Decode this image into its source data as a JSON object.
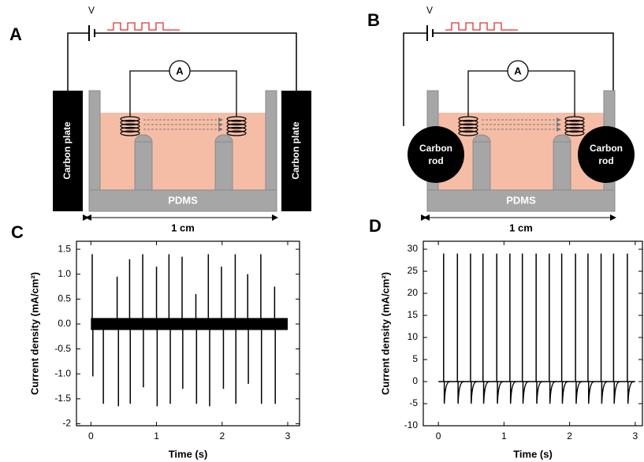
{
  "diagram": {
    "panels": [
      {
        "label": "A",
        "voltage": "V",
        "ammeter": "A",
        "electrodes": [
          "Carbon plate",
          "Carbon plate"
        ],
        "substrate": "PDMS",
        "scale": "1 cm"
      },
      {
        "label": "B",
        "voltage": "V",
        "ammeter": "A",
        "electrodes": [
          [
            "Carbon",
            "rod"
          ],
          [
            "Carbon",
            "rod"
          ]
        ],
        "substrate": "PDMS",
        "scale": "1 cm"
      }
    ]
  },
  "chart_data": [
    {
      "type": "spike",
      "panel_label": "C",
      "x_label": "Time (s)",
      "y_label": "Current density (mA/cm²)",
      "xlim": [
        -0.22,
        3.18
      ],
      "xticks": [
        0,
        1,
        2,
        3
      ],
      "ylim": [
        -2.04,
        1.66
      ],
      "yticks": [
        -2.0,
        -1.5,
        {
          "value": -1,
          "label": "-1.0"
        },
        -0.5,
        {
          "value": 0,
          "label": "0.0"
        },
        0.5,
        {
          "value": 1,
          "label": "1.0"
        },
        1.5
      ],
      "color": "#000000",
      "baseline": {
        "x": [
          0,
          3
        ],
        "values": [
          -0.12,
          0.12
        ]
      },
      "x": [
        0.02,
        0.03,
        0.19,
        0.4,
        0.42,
        0.59,
        0.6,
        0.79,
        0.8,
        1.0,
        1.01,
        1.19,
        1.21,
        1.39,
        1.4,
        1.6,
        1.61,
        1.79,
        1.81,
        1.99,
        2.02,
        2.2,
        2.21,
        2.39,
        2.4,
        2.59,
        2.6,
        2.8,
        2.81
      ],
      "values": [
        1.4,
        -1.05,
        -1.6,
        0.95,
        -1.65,
        1.3,
        -1.6,
        1.4,
        -1.27,
        1.15,
        -1.65,
        1.4,
        -1.6,
        1.35,
        -1.3,
        0.6,
        -1.6,
        1.4,
        -1.65,
        1.15,
        -1.3,
        1.4,
        -1.6,
        1.0,
        -1.2,
        1.4,
        -1.6,
        0.75,
        -1.6
      ]
    },
    {
      "type": "spike",
      "panel_label": "D",
      "x_label": "Time (s)",
      "y_label": "Current density (mA/cm²)",
      "xlim": [
        -0.23,
        3.11
      ],
      "xticks": [
        0,
        1,
        2,
        3
      ],
      "ylim": [
        -10,
        31.8
      ],
      "yticks": [
        -10,
        -5,
        0,
        5,
        10,
        15,
        20,
        25,
        30
      ],
      "color": "#000000",
      "baseline": {
        "x": [
          0,
          3
        ],
        "values": [
          0,
          0
        ]
      },
      "x": [
        0.08,
        0.09,
        0.29,
        0.3,
        0.49,
        0.5,
        0.68,
        0.69,
        0.89,
        0.9,
        1.09,
        1.1,
        1.28,
        1.29,
        1.49,
        1.5,
        1.69,
        1.7,
        1.88,
        1.89,
        2.09,
        2.1,
        2.28,
        2.29,
        2.48,
        2.49,
        2.67,
        2.68,
        2.88,
        2.89
      ],
      "values": [
        29,
        -5,
        29,
        -5,
        29,
        -5,
        29,
        -5,
        29,
        -5,
        29,
        -5,
        29,
        -5,
        29,
        -5,
        29,
        -5,
        29,
        -5,
        29,
        -5,
        29,
        -5,
        29,
        -5,
        29,
        -5,
        29,
        -5
      ]
    }
  ]
}
